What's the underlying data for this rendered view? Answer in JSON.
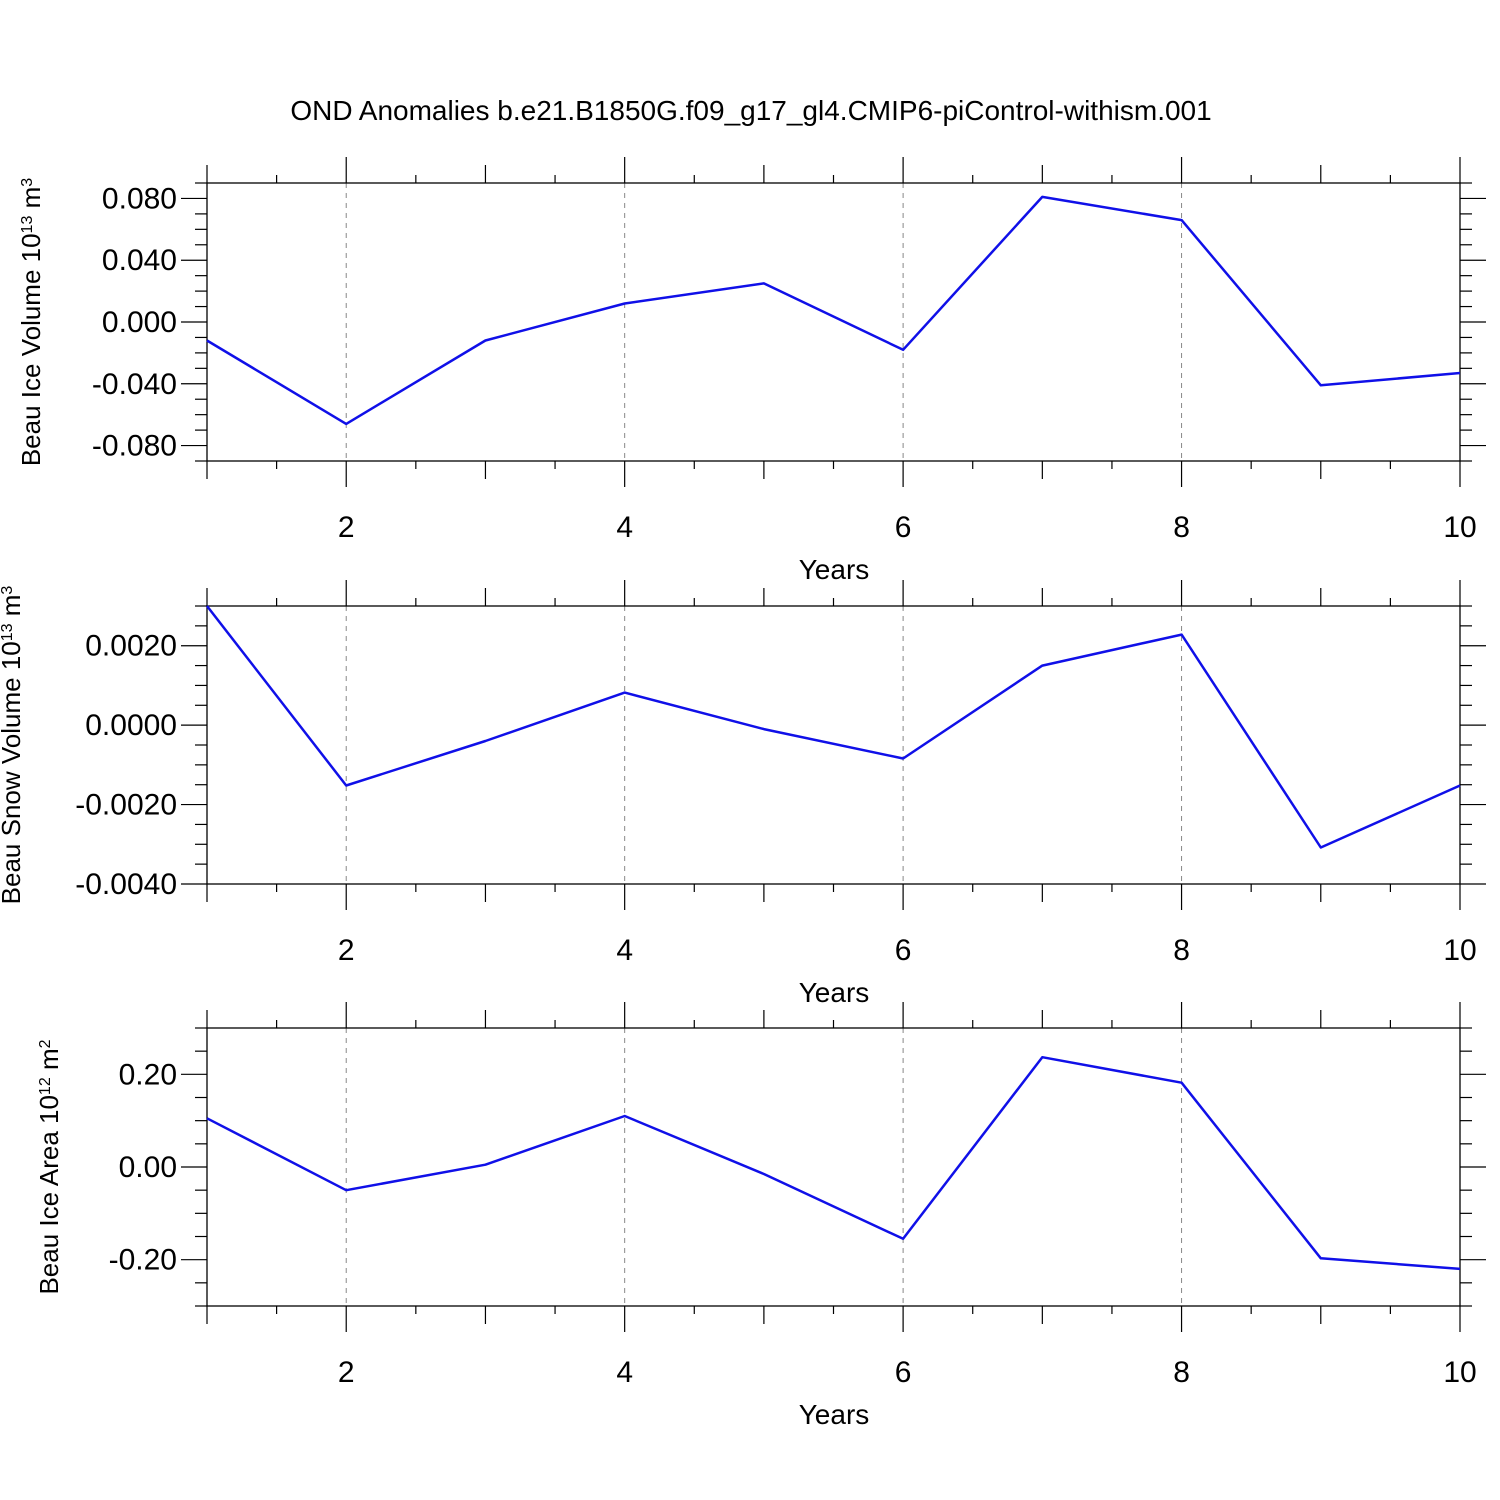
{
  "title": "OND Anomalies b.e21.B1850G.f09_g17_gl4.CMIP6-piControl-withism.001",
  "colors": {
    "line": "#1010e8",
    "axis": "#000000",
    "grid": "#888888"
  },
  "chart_data": [
    {
      "type": "line",
      "ylabel": {
        "main": "Beau Ice Volume 10",
        "sup": "13",
        "unit": " m",
        "unit_sup": "3"
      },
      "xlabel": "Years",
      "x": [
        1,
        2,
        3,
        4,
        5,
        6,
        7,
        8,
        9,
        10
      ],
      "values": [
        -0.012,
        -0.066,
        -0.012,
        0.012,
        0.025,
        -0.018,
        0.081,
        0.066,
        -0.041,
        -0.033
      ],
      "xlim": [
        1,
        10
      ],
      "ylim": [
        -0.09,
        0.09
      ],
      "xticks": [
        2,
        4,
        6,
        8,
        10
      ],
      "xtick_labels": [
        "2",
        "4",
        "6",
        "8",
        "10"
      ],
      "yticks": [
        0.08,
        0.04,
        0.0,
        -0.04,
        -0.08
      ],
      "ytick_labels": [
        "0.080",
        "0.040",
        "0.000",
        "-0.040",
        "-0.080"
      ],
      "yminor_step": 0.01,
      "grid": "x-dashed"
    },
    {
      "type": "line",
      "ylabel": {
        "main": "Beau Snow Volume 10",
        "sup": "13",
        "unit": " m",
        "unit_sup": "3"
      },
      "xlabel": "Years",
      "x": [
        1,
        2,
        3,
        4,
        5,
        6,
        7,
        8,
        9,
        10
      ],
      "values": [
        0.003,
        -0.00152,
        -0.0004,
        0.00082,
        -0.0001,
        -0.00084,
        0.0015,
        0.00228,
        -0.00308,
        -0.00152
      ],
      "xlim": [
        1,
        10
      ],
      "ylim": [
        -0.004,
        0.003
      ],
      "xticks": [
        2,
        4,
        6,
        8,
        10
      ],
      "xtick_labels": [
        "2",
        "4",
        "6",
        "8",
        "10"
      ],
      "yticks": [
        0.002,
        0.0,
        -0.002,
        -0.004
      ],
      "ytick_labels": [
        "0.0020",
        "0.0000",
        "-0.0020",
        "-0.0040"
      ],
      "yminor_step": 0.0005,
      "grid": "x-dashed"
    },
    {
      "type": "line",
      "ylabel": {
        "main": "Beau Ice Area 10",
        "sup": "12",
        "unit": " m",
        "unit_sup": "2"
      },
      "xlabel": "Years",
      "x": [
        1,
        2,
        3,
        4,
        5,
        6,
        7,
        8,
        9,
        10
      ],
      "values": [
        0.105,
        -0.05,
        0.005,
        0.11,
        -0.015,
        -0.155,
        0.237,
        0.182,
        -0.197,
        -0.22
      ],
      "xlim": [
        1,
        10
      ],
      "ylim": [
        -0.3,
        0.3
      ],
      "xticks": [
        2,
        4,
        6,
        8,
        10
      ],
      "xtick_labels": [
        "2",
        "4",
        "6",
        "8",
        "10"
      ],
      "yticks": [
        0.2,
        0.0,
        -0.2
      ],
      "ytick_labels": [
        "0.20",
        "0.00",
        "-0.20"
      ],
      "yminor_step": 0.05,
      "grid": "x-dashed"
    }
  ]
}
